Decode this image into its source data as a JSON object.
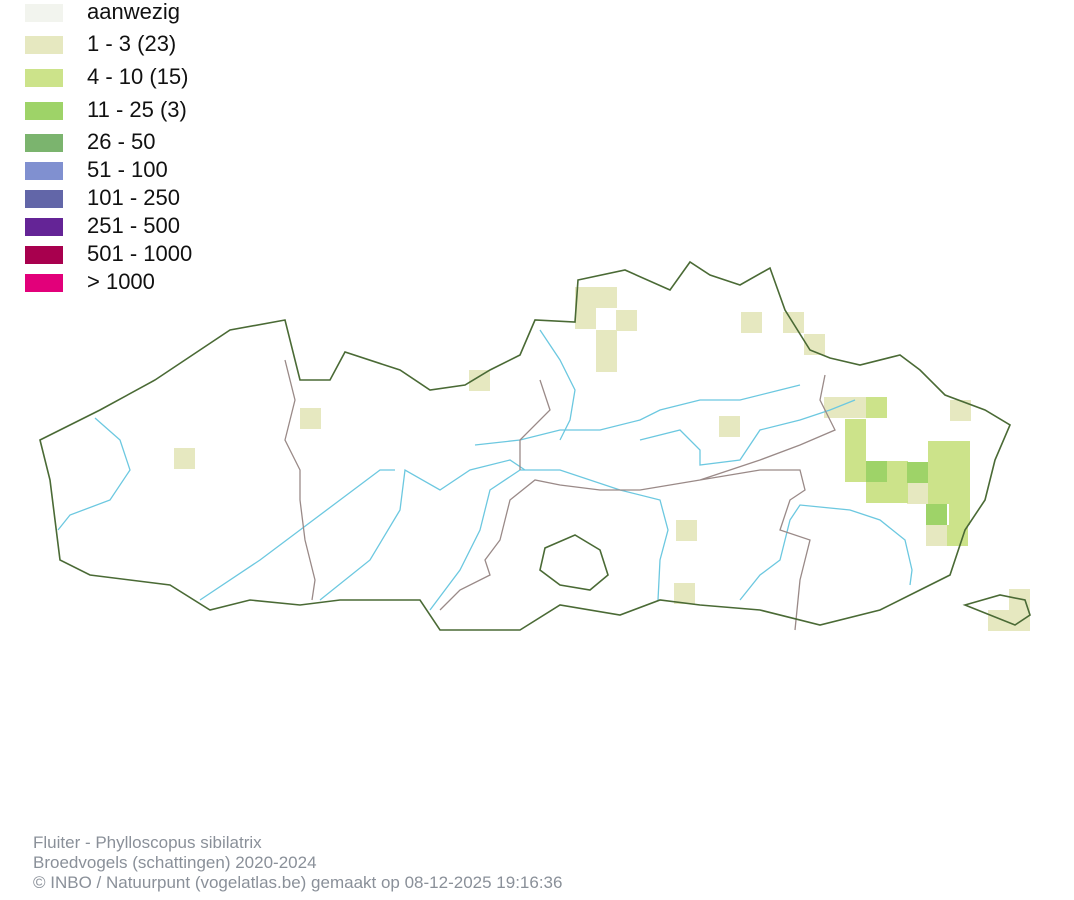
{
  "legend": [
    {
      "label": "aanwezig",
      "color": "#f2f4ee"
    },
    {
      "label": "1 - 3 (23)",
      "color": "#e6e8c0"
    },
    {
      "label": "4 - 10 (15)",
      "color": "#cce38a"
    },
    {
      "label": "11 - 25 (3)",
      "color": "#9ed368"
    },
    {
      "label": "26 - 50",
      "color": "#7bb46e"
    },
    {
      "label": "51 - 100",
      "color": "#8090d0"
    },
    {
      "label": "101 - 250",
      "color": "#6266a8"
    },
    {
      "label": "251 - 500",
      "color": "#642496"
    },
    {
      "label": "501 - 1000",
      "color": "#a8004e"
    },
    {
      "label": "> 1000",
      "color": "#e2007a"
    }
  ],
  "map": {
    "border_color": "#4a6a35",
    "province_border_color": "#9a8a88",
    "river_color": "#6cc8e0"
  },
  "footer": {
    "line1": "Fluiter - Phylloscopus sibilatrix",
    "line2": "Broedvogels (schattingen) 2020-2024",
    "line3": "© INBO / Natuurpunt (vogelatlas.be) gemaakt op 08-12-2025 19:16:36"
  }
}
